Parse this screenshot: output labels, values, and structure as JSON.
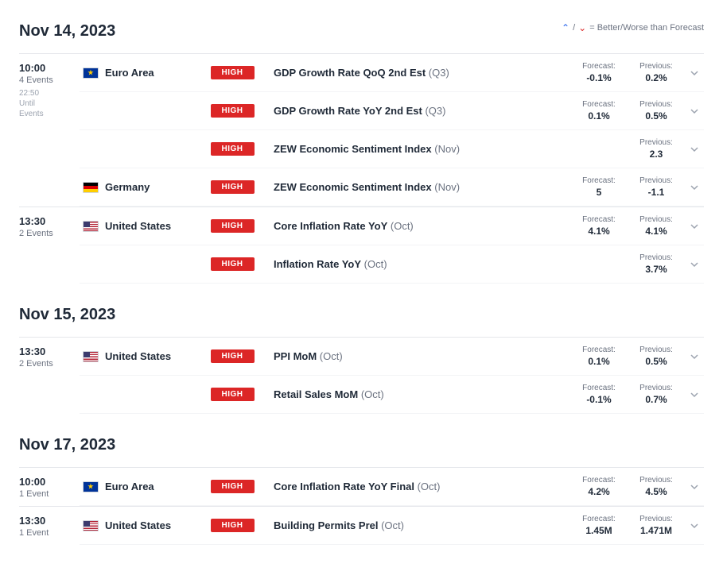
{
  "legend": {
    "text": "= Better/Worse than Forecast",
    "up_symbol": "⌃",
    "down_symbol": "⌄"
  },
  "labels": {
    "forecast": "Forecast:",
    "previous": "Previous:",
    "events_suffix": "Events",
    "event_suffix": "Event",
    "until": "Until",
    "events_word": "Events"
  },
  "impact_badge": "HIGH",
  "dates": [
    {
      "title": "Nov 14, 2023",
      "show_legend": true,
      "groups": [
        {
          "time": "10:00",
          "event_count": "4 Events",
          "extra_time": "22:50",
          "extra_lines": [
            "Until",
            "Events"
          ],
          "blocks": [
            {
              "country": "Euro Area",
              "flag": "eu",
              "events": [
                {
                  "name": "GDP Growth Rate QoQ 2nd Est",
                  "period": "(Q3)",
                  "forecast": "-0.1%",
                  "previous": "0.2%"
                },
                {
                  "name": "GDP Growth Rate YoY 2nd Est",
                  "period": "(Q3)",
                  "forecast": "0.1%",
                  "previous": "0.5%"
                },
                {
                  "name": "ZEW Economic Sentiment Index",
                  "period": "(Nov)",
                  "forecast": "",
                  "previous": "2.3"
                }
              ]
            },
            {
              "country": "Germany",
              "flag": "de",
              "events": [
                {
                  "name": "ZEW Economic Sentiment Index",
                  "period": "(Nov)",
                  "forecast": "5",
                  "previous": "-1.1"
                }
              ]
            }
          ]
        },
        {
          "time": "13:30",
          "event_count": "2 Events",
          "blocks": [
            {
              "country": "United States",
              "flag": "us",
              "events": [
                {
                  "name": "Core Inflation Rate YoY",
                  "period": "(Oct)",
                  "forecast": "4.1%",
                  "previous": "4.1%"
                },
                {
                  "name": "Inflation Rate YoY",
                  "period": "(Oct)",
                  "forecast": "",
                  "previous": "3.7%"
                }
              ]
            }
          ]
        }
      ]
    },
    {
      "title": "Nov 15, 2023",
      "groups": [
        {
          "time": "13:30",
          "event_count": "2 Events",
          "blocks": [
            {
              "country": "United States",
              "flag": "us",
              "events": [
                {
                  "name": "PPI MoM",
                  "period": "(Oct)",
                  "forecast": "0.1%",
                  "previous": "0.5%"
                },
                {
                  "name": "Retail Sales MoM",
                  "period": "(Oct)",
                  "forecast": "-0.1%",
                  "previous": "0.7%"
                }
              ]
            }
          ]
        }
      ]
    },
    {
      "title": "Nov 17, 2023",
      "groups": [
        {
          "time": "10:00",
          "event_count": "1 Event",
          "blocks": [
            {
              "country": "Euro Area",
              "flag": "eu",
              "events": [
                {
                  "name": "Core Inflation Rate YoY Final",
                  "period": "(Oct)",
                  "forecast": "4.2%",
                  "previous": "4.5%"
                }
              ]
            }
          ]
        },
        {
          "time": "13:30",
          "event_count": "1 Event",
          "blocks": [
            {
              "country": "United States",
              "flag": "us",
              "events": [
                {
                  "name": "Building Permits Prel",
                  "period": "(Oct)",
                  "forecast": "1.45M",
                  "previous": "1.471M"
                }
              ]
            }
          ]
        }
      ]
    }
  ]
}
